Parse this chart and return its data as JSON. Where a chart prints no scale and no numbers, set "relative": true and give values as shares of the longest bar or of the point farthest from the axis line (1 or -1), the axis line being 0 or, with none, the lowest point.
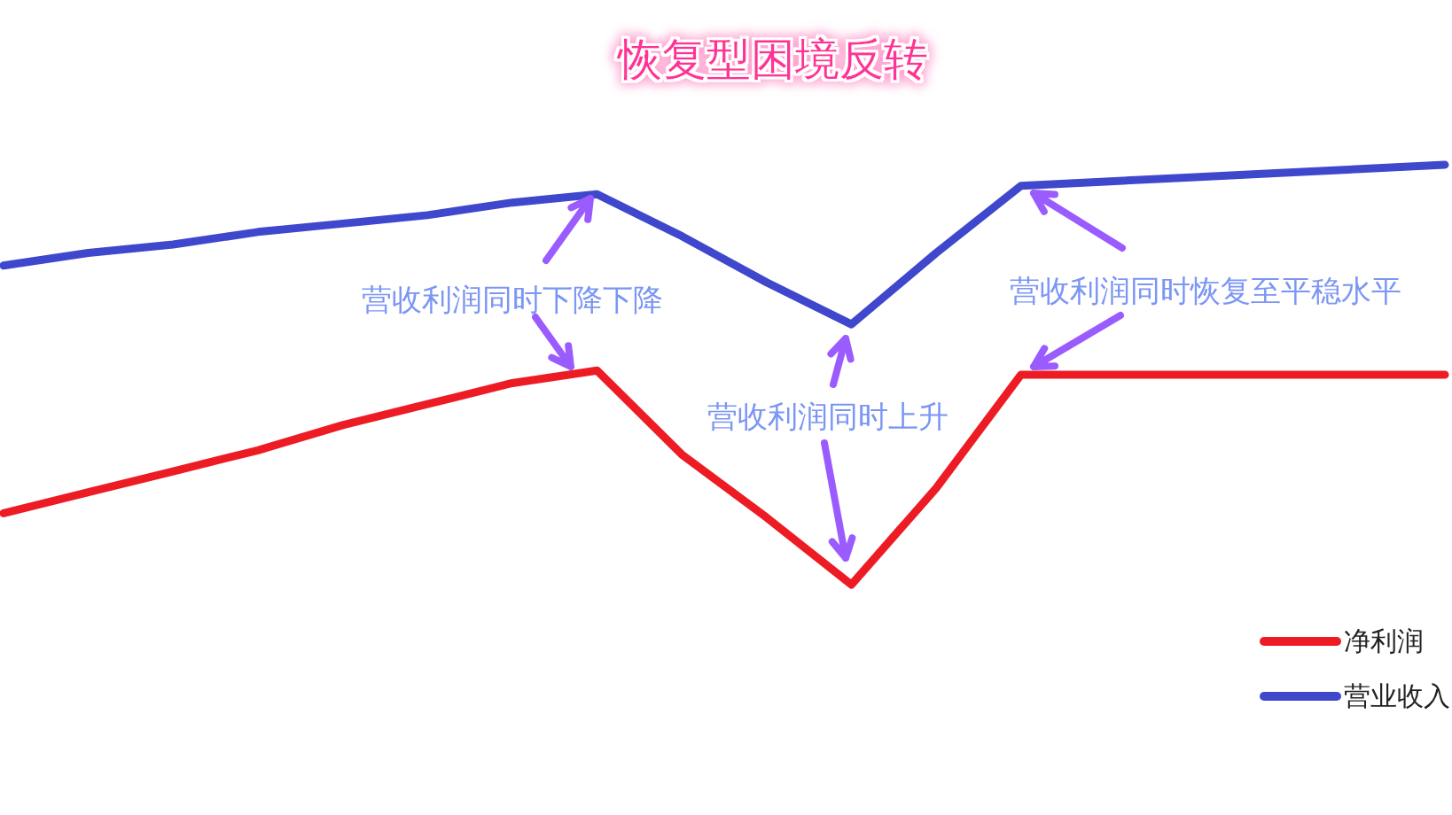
{
  "chart_data": {
    "type": "line",
    "title": "恢复型困境反转",
    "relative": true,
    "legend": "bottom right",
    "categories": [
      null,
      null,
      null,
      null,
      null,
      null,
      null,
      null,
      null,
      null,
      null,
      null,
      null,
      null,
      null,
      null,
      null,
      null
    ],
    "series": [
      {
        "name": "净利润",
        "color": "#ed1c24",
        "values": [
          0.17,
          0.22,
          0.27,
          0.32,
          0.38,
          0.43,
          0.48,
          0.51,
          0.31,
          0.16,
          0,
          0.23,
          0.5,
          0.5,
          0.5,
          0.5,
          0.5,
          0.5
        ]
      },
      {
        "name": "营业收入",
        "color": "#3f48cc",
        "values": [
          0.76,
          0.79,
          0.81,
          0.84,
          0.86,
          0.88,
          0.91,
          0.93,
          0.83,
          0.72,
          0.62,
          0.79,
          0.95,
          0.96,
          0.97,
          0.98,
          0.99,
          1
        ]
      }
    ],
    "annotations": [
      "营收利润同时下降下降",
      "营收利润同时上升",
      "营收利润同时恢复至平稳水平"
    ]
  }
}
